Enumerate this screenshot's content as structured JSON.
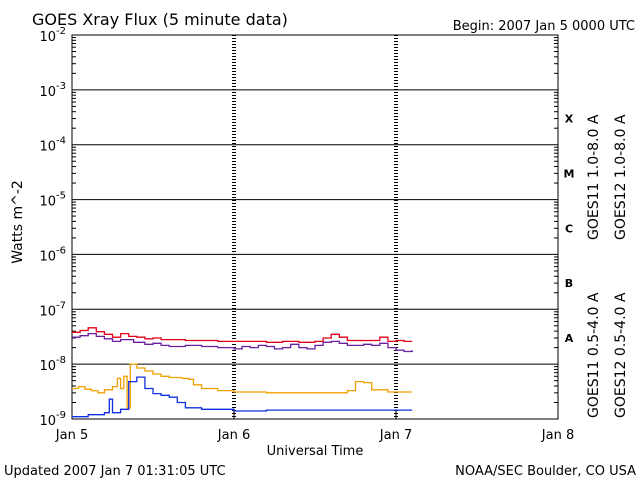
{
  "header": {
    "title": "GOES Xray Flux (5 minute data)",
    "begin": "Begin:  2007 Jan 5 0000 UTC"
  },
  "footer": {
    "updated": "Updated 2007 Jan  7 01:31:05 UTC",
    "credit": "NOAA/SEC Boulder, CO USA"
  },
  "colors": {
    "goes11_long": "#6a1fa0",
    "goes12_long": "#e0001a",
    "goes11_short": "#f0a000",
    "goes12_short": "#1030e0"
  },
  "chart_data": {
    "type": "line",
    "title": "GOES Xray Flux (5 minute data)",
    "xlabel": "Universal Time",
    "ylabel": "Watts m^-2",
    "y_scale": "log",
    "ylim": [
      1e-09,
      0.01
    ],
    "xlim": [
      "Jan 5",
      "Jan 8"
    ],
    "x_ticks": [
      "Jan 5",
      "Jan 6",
      "Jan 7",
      "Jan 8"
    ],
    "y_ticks": [
      {
        "value": 0.01,
        "base": "10",
        "exp": "-2"
      },
      {
        "value": 0.001,
        "base": "10",
        "exp": "-3"
      },
      {
        "value": 0.0001,
        "base": "10",
        "exp": "-4"
      },
      {
        "value": 1e-05,
        "base": "10",
        "exp": "-5"
      },
      {
        "value": 1e-06,
        "base": "10",
        "exp": "-6"
      },
      {
        "value": 1e-07,
        "base": "10",
        "exp": "-7"
      },
      {
        "value": 1e-08,
        "base": "10",
        "exp": "-8"
      },
      {
        "value": 1e-09,
        "base": "10",
        "exp": "-9"
      }
    ],
    "flare_classes": [
      {
        "label": "X",
        "value": 0.0003
      },
      {
        "label": "M",
        "value": 3e-05
      },
      {
        "label": "C",
        "value": 3e-06
      },
      {
        "label": "B",
        "value": 3e-07
      },
      {
        "label": "A",
        "value": 3e-08
      }
    ],
    "grid": "horizontal lines at each decade from 1e-8 to 1e-3",
    "legend_right_top": [
      "GOES11 1.0-8.0 A",
      "GOES12 1.0-8.0 A"
    ],
    "legend_right_bottom": [
      "GOES11 0.5-4.0 A",
      "GOES12 0.5-4.0 A"
    ],
    "x_unit": "days since Jan 5 0000 UTC",
    "series": [
      {
        "name": "GOES11 1.0-8.0 A",
        "color": "#6a1fa0",
        "points": [
          [
            0,
            3.1e-08
          ],
          [
            0.05,
            3.3e-08
          ],
          [
            0.1,
            3.6e-08
          ],
          [
            0.15,
            3.2e-08
          ],
          [
            0.2,
            2.9e-08
          ],
          [
            0.25,
            2.6e-08
          ],
          [
            0.3,
            2.8e-08
          ],
          [
            0.38,
            2.5e-08
          ],
          [
            0.45,
            2.3e-08
          ],
          [
            0.5,
            2.4e-08
          ],
          [
            0.55,
            2.2e-08
          ],
          [
            0.6,
            2.1e-08
          ],
          [
            0.7,
            2.2e-08
          ],
          [
            0.8,
            2.1e-08
          ],
          [
            0.9,
            2e-08
          ],
          [
            1.0,
            1.9e-08
          ],
          [
            1.05,
            2.1e-08
          ],
          [
            1.1,
            2e-08
          ],
          [
            1.15,
            2.2e-08
          ],
          [
            1.2,
            2.1e-08
          ],
          [
            1.25,
            1.9e-08
          ],
          [
            1.3,
            2e-08
          ],
          [
            1.35,
            2.3e-08
          ],
          [
            1.4,
            2e-08
          ],
          [
            1.45,
            1.9e-08
          ],
          [
            1.5,
            2.2e-08
          ],
          [
            1.55,
            2.5e-08
          ],
          [
            1.6,
            2.6e-08
          ],
          [
            1.65,
            2.4e-08
          ],
          [
            1.7,
            2.2e-08
          ],
          [
            1.75,
            2.2e-08
          ],
          [
            1.8,
            2.3e-08
          ],
          [
            1.85,
            2.2e-08
          ],
          [
            1.9,
            2.4e-08
          ],
          [
            1.95,
            2e-08
          ],
          [
            2.0,
            1.8e-08
          ],
          [
            2.05,
            1.7e-08
          ],
          [
            2.1,
            1.8e-08
          ]
        ]
      },
      {
        "name": "GOES12 1.0-8.0 A",
        "color": "#e0001a",
        "points": [
          [
            0,
            3.8e-08
          ],
          [
            0.05,
            4.1e-08
          ],
          [
            0.1,
            4.6e-08
          ],
          [
            0.15,
            3.9e-08
          ],
          [
            0.2,
            3.5e-08
          ],
          [
            0.25,
            3.1e-08
          ],
          [
            0.3,
            3.6e-08
          ],
          [
            0.35,
            3.2e-08
          ],
          [
            0.4,
            3.1e-08
          ],
          [
            0.45,
            2.9e-08
          ],
          [
            0.5,
            3e-08
          ],
          [
            0.55,
            2.8e-08
          ],
          [
            0.6,
            2.8e-08
          ],
          [
            0.7,
            2.7e-08
          ],
          [
            0.8,
            2.7e-08
          ],
          [
            0.9,
            2.6e-08
          ],
          [
            1.0,
            2.6e-08
          ],
          [
            1.1,
            2.6e-08
          ],
          [
            1.2,
            2.5e-08
          ],
          [
            1.3,
            2.6e-08
          ],
          [
            1.4,
            2.5e-08
          ],
          [
            1.5,
            2.6e-08
          ],
          [
            1.55,
            3e-08
          ],
          [
            1.6,
            3.5e-08
          ],
          [
            1.65,
            3.1e-08
          ],
          [
            1.7,
            2.7e-08
          ],
          [
            1.8,
            2.7e-08
          ],
          [
            1.85,
            2.7e-08
          ],
          [
            1.9,
            3.1e-08
          ],
          [
            1.95,
            2.6e-08
          ],
          [
            2.0,
            2.7e-08
          ],
          [
            2.05,
            2.6e-08
          ],
          [
            2.1,
            2.6e-08
          ]
        ]
      },
      {
        "name": "GOES11 0.5-4.0 A",
        "color": "#f0a000",
        "points": [
          [
            0,
            3.6e-09
          ],
          [
            0.04,
            3.9e-09
          ],
          [
            0.08,
            3.5e-09
          ],
          [
            0.12,
            3.3e-09
          ],
          [
            0.16,
            3e-09
          ],
          [
            0.2,
            3.4e-09
          ],
          [
            0.25,
            3.9e-09
          ],
          [
            0.28,
            5.5e-09
          ],
          [
            0.3,
            3.6e-09
          ],
          [
            0.32,
            6e-09
          ],
          [
            0.34,
            1.6e-09
          ],
          [
            0.36,
            1e-08
          ],
          [
            0.4,
            8.5e-09
          ],
          [
            0.45,
            7.5e-09
          ],
          [
            0.5,
            6.6e-09
          ],
          [
            0.55,
            6e-09
          ],
          [
            0.6,
            5.7e-09
          ],
          [
            0.68,
            5.5e-09
          ],
          [
            0.72,
            5.3e-09
          ],
          [
            0.75,
            4.2e-09
          ],
          [
            0.8,
            3.6e-09
          ],
          [
            0.9,
            3.3e-09
          ],
          [
            1.0,
            3.1e-09
          ],
          [
            1.2,
            3e-09
          ],
          [
            1.4,
            3e-09
          ],
          [
            1.6,
            3e-09
          ],
          [
            1.7,
            3.3e-09
          ],
          [
            1.75,
            4.8e-09
          ],
          [
            1.8,
            4.6e-09
          ],
          [
            1.85,
            3.4e-09
          ],
          [
            1.95,
            3.1e-09
          ],
          [
            2.1,
            3.1e-09
          ]
        ]
      },
      {
        "name": "GOES12 0.5-4.0 A",
        "color": "#1030e0",
        "points": [
          [
            0,
            1.1e-09
          ],
          [
            0.1,
            1.2e-09
          ],
          [
            0.2,
            1.3e-09
          ],
          [
            0.23,
            2.3e-09
          ],
          [
            0.25,
            1.3e-09
          ],
          [
            0.3,
            1.5e-09
          ],
          [
            0.35,
            4.8e-09
          ],
          [
            0.4,
            5.8e-09
          ],
          [
            0.45,
            3.6e-09
          ],
          [
            0.5,
            2.9e-09
          ],
          [
            0.55,
            2.7e-09
          ],
          [
            0.6,
            2.5e-09
          ],
          [
            0.65,
            2e-09
          ],
          [
            0.7,
            1.6e-09
          ],
          [
            0.8,
            1.5e-09
          ],
          [
            0.9,
            1.5e-09
          ],
          [
            1.0,
            1.4e-09
          ],
          [
            1.2,
            1.45e-09
          ],
          [
            1.4,
            1.45e-09
          ],
          [
            1.6,
            1.45e-09
          ],
          [
            1.8,
            1.45e-09
          ],
          [
            2.0,
            1.45e-09
          ],
          [
            2.1,
            1.45e-09
          ]
        ]
      }
    ]
  }
}
